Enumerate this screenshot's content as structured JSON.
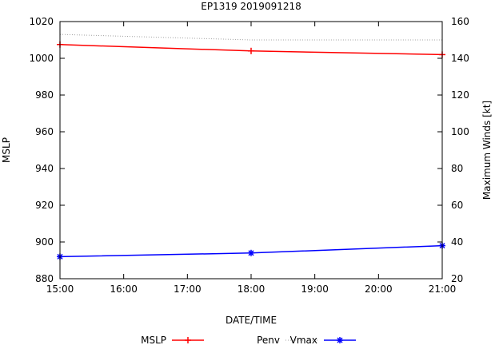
{
  "chart_data": {
    "type": "line",
    "title": "EP1319 2019091218",
    "xlabel": "DATE/TIME",
    "ylabel_left": "MSLP",
    "ylabel_right": "Maximum Winds [kt]",
    "x_tick_labels": [
      "15:00",
      "16:00",
      "17:00",
      "18:00",
      "19:00",
      "20:00",
      "21:00"
    ],
    "x_hours": [
      15,
      16,
      17,
      18,
      19,
      20,
      21
    ],
    "xlim": [
      15,
      21
    ],
    "ylim_left": [
      880,
      1020
    ],
    "ylim_right": [
      20,
      160
    ],
    "y_ticks_left": [
      880,
      900,
      920,
      940,
      960,
      980,
      1000,
      1020
    ],
    "y_ticks_right": [
      20,
      40,
      60,
      80,
      100,
      120,
      140,
      160
    ],
    "series": [
      {
        "name": "MSLP",
        "axis": "left",
        "color": "#ff0000",
        "marker": "plus",
        "x": [
          15,
          18,
          21
        ],
        "values": [
          1007.5,
          1004,
          1002
        ]
      },
      {
        "name": "Penv",
        "axis": "left",
        "color": "#a0a0a0",
        "marker": "none",
        "style": "dotted",
        "x": [
          15,
          18,
          21
        ],
        "values": [
          1013,
          1010,
          1010
        ]
      },
      {
        "name": "Vmax",
        "axis": "right",
        "color": "#0000ff",
        "marker": "star",
        "x": [
          15,
          18,
          21
        ],
        "values": [
          32,
          34,
          38
        ]
      }
    ],
    "legend": [
      "MSLP",
      "Penv",
      "Vmax"
    ],
    "legend_position": "bottom"
  }
}
